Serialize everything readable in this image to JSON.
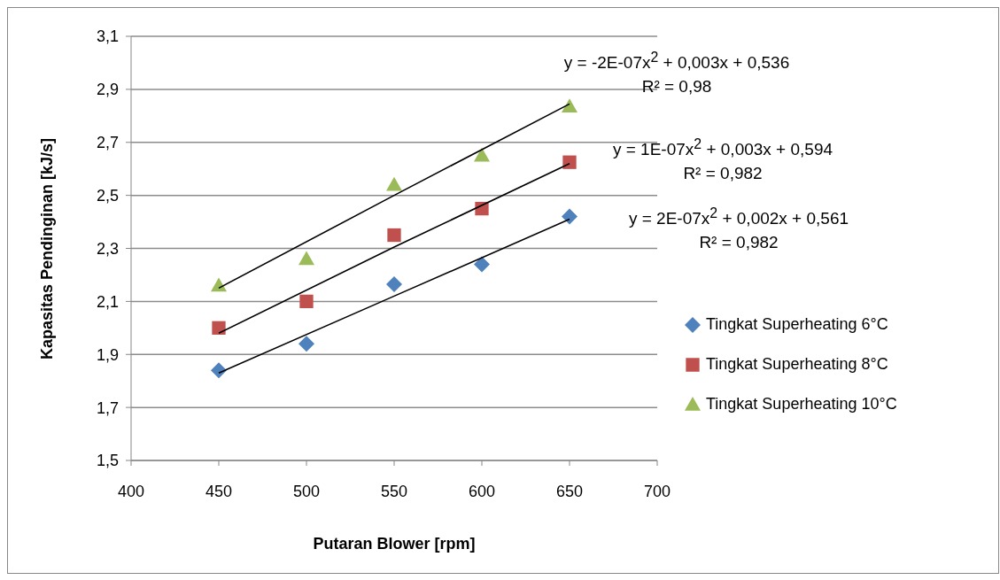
{
  "chart_data": {
    "type": "scatter",
    "xlabel": "Putaran Blower [rpm]",
    "ylabel": "Kapasitas Pendinginan [kJ/s]",
    "xlim": [
      400,
      700
    ],
    "xticks": [
      400,
      450,
      500,
      550,
      600,
      650,
      700
    ],
    "ylim": [
      1.5,
      3.1
    ],
    "yticks": [
      {
        "value": 1.5,
        "label": "1,5"
      },
      {
        "value": 1.7,
        "label": "1,7"
      },
      {
        "value": 1.9,
        "label": "1,9"
      },
      {
        "value": 2.1,
        "label": "2,1"
      },
      {
        "value": 2.3,
        "label": "2,3"
      },
      {
        "value": 2.5,
        "label": "2,5"
      },
      {
        "value": 2.7,
        "label": "2,7"
      },
      {
        "value": 2.9,
        "label": "2,9"
      },
      {
        "value": 3.1,
        "label": "3,1"
      }
    ],
    "grid": "y",
    "legend": "right",
    "series": [
      {
        "type": "scatter",
        "name": "Tingkat Superheating 6°C",
        "color": "#4f81bd",
        "marker": "diamond",
        "x": [
          450,
          500,
          550,
          600,
          650
        ],
        "values": [
          1.84,
          1.94,
          2.165,
          2.24,
          2.42
        ]
      },
      {
        "type": "scatter",
        "name": "Tingkat Superheating 8°C",
        "color": "#c0504d",
        "marker": "square",
        "x": [
          450,
          500,
          550,
          600,
          650
        ],
        "values": [
          2.0,
          2.1,
          2.35,
          2.45,
          2.625
        ]
      },
      {
        "type": "scatter",
        "name": "Tingkat Superheating 10°C",
        "color": "#9bbb59",
        "marker": "triangle",
        "x": [
          450,
          500,
          550,
          600,
          650
        ],
        "values": [
          2.16,
          2.26,
          2.54,
          2.65,
          2.835
        ]
      },
      {
        "type": "line",
        "color": "#000000",
        "marker": "none",
        "line_style": "solid",
        "x": [
          450,
          550,
          650
        ],
        "values": [
          2.15,
          2.5,
          2.845
        ]
      },
      {
        "type": "line",
        "color": "#000000",
        "marker": "none",
        "line_style": "solid",
        "x": [
          450,
          550,
          650
        ],
        "values": [
          1.98,
          2.305,
          2.62
        ]
      },
      {
        "type": "line",
        "color": "#000000",
        "marker": "none",
        "line_style": "solid",
        "x": [
          450,
          550,
          650
        ],
        "values": [
          1.83,
          2.12,
          2.41
        ]
      }
    ],
    "annotations": [
      "y = -2E-07x$^{2}$ + 0,003x + 0,536",
      "R² = 0,98",
      "y = 1E-07x$^{2}$ + 0,003x + 0,594",
      "R² = 0,982",
      "y = 2E-07x$^{2}$ + 0,002x + 0,561",
      "R² = 0,982"
    ]
  }
}
